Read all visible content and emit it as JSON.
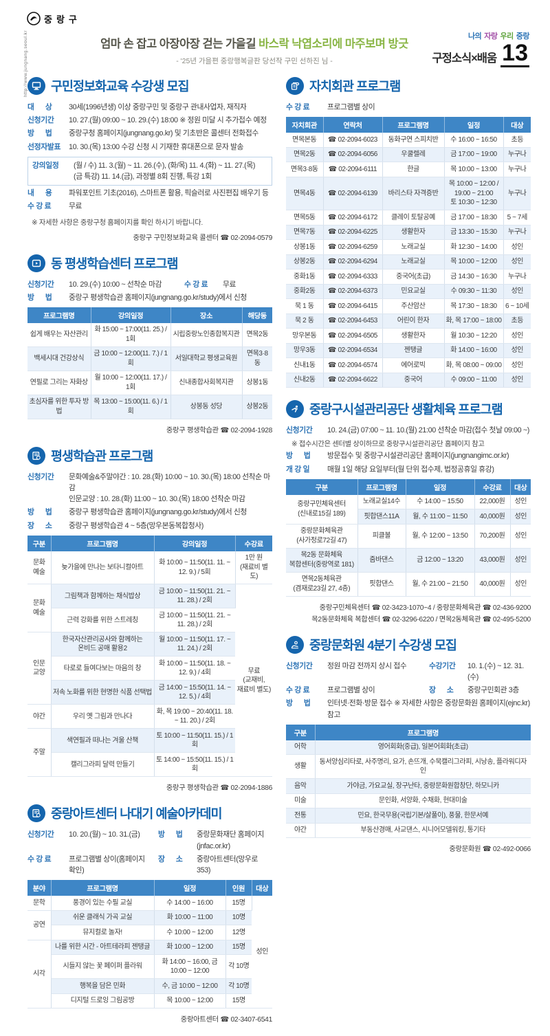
{
  "colors": {
    "accent_blue": "#1565ad",
    "label_blue": "#2e74b5",
    "table_header": "#3e86c6",
    "row_alt": "#e9f1fa",
    "highlight_green": "#8ab646",
    "brand_purple": "#a350a8",
    "brand_green": "#61a53f"
  },
  "header": {
    "logo_text": "중랑구",
    "logo_url_vertical": "http://www.jungnang.seoul.kr",
    "slogan_main": "엄마 손 잡고 아장아장 걷는 가을길 ",
    "slogan_highlight": "바스락 낙엽소리에 마주보며 방긋",
    "slogan_sub": "- '25년 가을편 중랑행복글판 당선작 구민 선하진 님 -",
    "brand_words": [
      {
        "text": "나의"
      },
      {
        "text": "자랑"
      },
      {
        "text": "우리"
      },
      {
        "text": "중랑"
      }
    ],
    "section_label": "구정소식×배움",
    "page_number": "13"
  },
  "sections": {
    "info_edu": {
      "title": "구민정보화교육 수강생 모집",
      "rows": [
        {
          "label": "대      상",
          "value": "30세(1996년생) 이상 중랑구민 및 중랑구 관내사업자, 재직자"
        },
        {
          "label": "신청기간",
          "value": "10. 27.(월) 09:00 ~ 10. 29.(수) 18:00  ※ 정원 미달 시 추가접수 예정"
        },
        {
          "label": "방      법",
          "value": "중랑구청 홈페이지(jungnang.go.kr) 및 기초반은 콜센터 전화접수"
        },
        {
          "label": "선정자발표",
          "value": "10. 30.(목) 13:00 수강 신청 시 기재한 휴대폰으로 문자 발송"
        }
      ],
      "box_row": {
        "label": "강의일정",
        "value": "(월 / 수) 11. 3.(월) ~ 11. 26.(수), (화/목) 11. 4.(화) ~ 11. 27.(목)\n(금 특강) 11. 14.(금), 과정별 8회 진행, 특강 1회"
      },
      "rows2": [
        {
          "label": "내      용",
          "value": "파워포인트 기초(2016), 스마트폰 활용, 픽슬러로 사진편집 배우기 등"
        },
        {
          "label": "수 강 료",
          "value": "무료"
        }
      ],
      "note": "※ 자세한 사항은 중랑구청 홈페이지를 확인 하시기 바랍니다.",
      "contact": "중랑구 구민정보화교육 콜센터 ☎ 02-2094-0579"
    },
    "dong_center": {
      "title": "동 평생학습센터 프로그램",
      "row1a": {
        "label": "신청기간",
        "value": "10. 29.(수) 10:00 ~ 선착순 마감"
      },
      "row1b": {
        "label": "수 강 료",
        "value": "무료"
      },
      "row2": {
        "label": "방      법",
        "value": "중랑구 평생학습관 홈페이지(jungnang.go.kr/study)에서 신청"
      },
      "table": {
        "headers": [
          "프로그램명",
          "강의일정",
          "장소",
          "해당동"
        ],
        "widths": [
          92,
          116,
          104,
          44
        ],
        "rows": [
          [
            "쉽게 배우는 자산관리",
            "화 15:00 ~ 17:00(11. 25.) / 1회",
            "시립중랑노인종합복지관",
            "면목2동"
          ],
          [
            "백세시대 건강상식",
            "금 10:00 ~ 12:00(11. 7.) / 1회",
            "서일대학교 평생교육원",
            "면목3·8동"
          ],
          [
            "연필로 그리는 자화상",
            "월 10:00 ~ 12:00(11. 17.) / 1회",
            "신내종합사회복지관",
            "상봉1동"
          ],
          [
            "초심자를 위한 투자 방법",
            "목 13:00 ~ 15:00(11. 6.) / 1회",
            "상봉동 성당",
            "상봉2동"
          ]
        ]
      },
      "contact": "중랑구 평생학습관 ☎ 02-2094-1928"
    },
    "learning_hall": {
      "title": "평생학습관 프로그램",
      "rows": [
        {
          "label": "신청기간",
          "value": "문화예술&주말야간 : 10. 28.(화) 10:00 ~ 10. 30.(목) 18:00 선착순 마감\n인문교양 : 10. 28.(화) 11:00 ~ 10. 30.(목) 18:00 선착순 마감"
        },
        {
          "label": "방      법",
          "value": "중랑구 평생학습관 홈페이지(jungnang.go.kr/study)에서 신청"
        },
        {
          "label": "장      소",
          "value": "중랑구 평생학습관 4 ~ 5층(망우본동복합청사)"
        }
      ],
      "table": {
        "headers": [
          "구분",
          "프로그램명",
          "강의일정",
          "수강료"
        ],
        "widths": [
          34,
          150,
          118,
          54
        ],
        "rows": [
          [
            {
              "t": "문화\n예술"
            },
            "늦가을에 만나는 보타니컬아트",
            "화 10:00 ~ 11:50(11. 11. ~ 12. 9.) / 5회",
            {
              "t": "1만 원\n(재료비 별도)"
            }
          ],
          [
            {
              "t": "문화\n예술",
              "rs": 2
            },
            "그림책과 함께하는 채식밥상",
            "금 10:00 ~ 11:50(11. 21. ~ 11. 28.) / 2회",
            {
              "t": "무료\n(교재비,\n재료비 별도)",
              "rs": 8
            }
          ],
          [
            "근력 강화를 위한 스트레칭",
            "금 10:00 ~ 11:50(11. 21. ~ 11. 28.) / 2회"
          ],
          [
            {
              "t": "인문\n교양",
              "rs": 3
            },
            "한국자산관리공사와 함께하는\n온비드 공매 활용2",
            "월 10:00 ~ 11:50(11. 17. ~ 11. 24.) / 2회"
          ],
          [
            "타로로 들여다보는 마음의 창",
            "화 10:00 ~ 11:50(11. 18. ~ 12. 9.) / 4회"
          ],
          [
            "저속 노화를 위한 현명한 식품 선택법",
            "금 14:00 ~ 15:50(11. 14. ~ 12. 5.) / 4회"
          ],
          [
            "야간",
            "우리 옛 그림과 만나다",
            "화, 목 19:00 ~ 20:40(11. 18. ~ 11. 20.) / 2회"
          ],
          [
            {
              "t": "주말",
              "rs": 2
            },
            "색연필과 떠나는 겨울 산책",
            "토 10:00 ~ 11:50(11. 15.) / 1회"
          ],
          [
            "캘리그라피 달력 만들기",
            "토 14:00 ~ 15:50(11. 15.) / 1회"
          ]
        ]
      },
      "contact": "중랑구 평생학습관 ☎ 02-2094-1886"
    },
    "art_center": {
      "title": "중랑아트센터 나대기 예술아카데미",
      "row1a": {
        "label": "신청기간",
        "value": "10. 20.(월) ~ 10. 31.(금)"
      },
      "row1b": {
        "label": "방      법",
        "value": "중랑문화재단 홈페이지(jnfac.or.kr)"
      },
      "row2a": {
        "label": "수 강 료",
        "value": "프로그램별 상이(홈페이지 확인)"
      },
      "row2b": {
        "label": "장      소",
        "value": "중랑아트센터(망우로 353)"
      },
      "table": {
        "headers": [
          "분야",
          "프로그램명",
          "일정",
          "인원",
          "대상"
        ],
        "widths": [
          34,
          150,
          104,
          38,
          30
        ],
        "rows": [
          [
            "문학",
            "풍경이 있는 수필 교실",
            "수 14:00 ~ 16:00",
            "15명",
            {
              "t": "성인",
              "rs": 7
            }
          ],
          [
            {
              "t": "공연",
              "rs": 2
            },
            "쉬운 클래식 가곡 교실",
            "화 10:00 ~ 11:00",
            "10명"
          ],
          [
            "뮤지컬로 놀자!",
            "수 10:00 ~ 12:00",
            "12명"
          ],
          [
            {
              "t": "시각",
              "rs": 4
            },
            "나를 위한 시간 - 아트테라피 젠탱글",
            "화 10:00 ~ 12:00",
            "15명"
          ],
          [
            "시들지 않는 꽃 페이퍼 플라워",
            "화 14:00 ~ 16:00, 금 10:00 ~ 12:00",
            "각 10명"
          ],
          [
            "행복을 담은 민화",
            "수, 금 10:00 ~ 12:00",
            "각 10명"
          ],
          [
            "디지털 드로잉 그림공방",
            "목 10:00 ~ 12:00",
            "15명"
          ]
        ]
      },
      "contact": "중랑아트센터 ☎ 02-3407-6541"
    },
    "jachi": {
      "title": "자치회관 프로그램",
      "fee": {
        "label": "수 강 료",
        "value": "프로그램별 상이"
      },
      "table": {
        "headers": [
          "자치회관",
          "연락처",
          "프로그램명",
          "일정",
          "대상"
        ],
        "widths": [
          54,
          86,
          90,
          86,
          40
        ],
        "rows": [
          [
            "면목본동",
            "☎ 02-2094-6023",
            "동화구연 스피치반",
            "수 16:00 ~ 16:50",
            "초등"
          ],
          [
            "면목2동",
            "☎ 02-2094-6056",
            "우쿨렐레",
            "금 17:00 ~ 19:00",
            "누구나"
          ],
          [
            "면목3·8동",
            "☎ 02-2094-6111",
            "한글",
            "목 10:00 ~ 13:00",
            "누구나"
          ],
          [
            "면목4동",
            "☎ 02-2094-6139",
            "바리스타 자격증반",
            "목 10:00 ~ 12:00 /\n19:00 ~ 21:00\n토 10:30 ~ 12:30",
            "누구나"
          ],
          [
            "면목5동",
            "☎ 02-2094-6172",
            "클레이 토탈공예",
            "금 17:00 ~ 18:30",
            "5 ~ 7세"
          ],
          [
            "면목7동",
            "☎ 02-2094-6225",
            "생활한자",
            "금 13:30 ~ 15:30",
            "누구나"
          ],
          [
            "상봉1동",
            "☎ 02-2094-6259",
            "노래교실",
            "화 12:30 ~ 14:00",
            "성인"
          ],
          [
            "상봉2동",
            "☎ 02-2094-6294",
            "노래교실",
            "목 10:00 ~ 12:00",
            "성인"
          ],
          [
            "중화1동",
            "☎ 02-2094-6333",
            "중국어(초급)",
            "금 14:30 ~ 16:30",
            "누구나"
          ],
          [
            "중화2동",
            "☎ 02-2094-6373",
            "민요교실",
            "수 09:30 ~ 11:30",
            "성인"
          ],
          [
            "묵 1 동",
            "☎ 02-2094-6415",
            "주산암산",
            "목 17:30 ~ 18:30",
            "6 ~ 10세"
          ],
          [
            "묵 2 동",
            "☎ 02-2094-6453",
            "어린이 한자",
            "화, 목 17:00 ~ 18:00",
            "초등"
          ],
          [
            "망우본동",
            "☎ 02-2094-6505",
            "생활한자",
            "월 10:30 ~ 12:20",
            "성인"
          ],
          [
            "망우3동",
            "☎ 02-2094-6534",
            "젠탱글",
            "화 14:00 ~ 16:00",
            "성인"
          ],
          [
            "신내1동",
            "☎ 02-2094-6574",
            "에어로빅",
            "화, 목 08:00 ~ 09:00",
            "성인"
          ],
          [
            "신내2동",
            "☎ 02-2094-6622",
            "중국어",
            "수 09:00 ~ 11:00",
            "성인"
          ]
        ]
      }
    },
    "sports": {
      "title": "중랑구시설관리공단 생활체육 프로그램",
      "row1": {
        "label": "신청기간",
        "value": "10. 24.(금) 07:00 ~ 11. 10.(월) 21:00 선착순 마감(접수 첫날 09:00 ~)"
      },
      "note": "※ 접수시간은 센터별 상이하므로 중랑구시설관리공단 홈페이지 참고",
      "row2": {
        "label": "방      법",
        "value": "방문접수 및 중랑구시설관리공단 홈페이지(jungnangimc.or.kr)"
      },
      "row3": {
        "label": "개 강 일",
        "value": "매월 1일 해당 요일부터(월 단위 접수제, 법정공휴일 휴강)"
      },
      "table": {
        "headers": [
          "구분",
          "프로그램명",
          "일정",
          "수강료",
          "대상"
        ],
        "widths": [
          104,
          70,
          100,
          52,
          30
        ],
        "rows": [
          [
            {
              "t": "중랑구민체육센터\n(신내로15길 189)",
              "rs": 2
            },
            "노래교실14수",
            "수 14:00 ~ 15:50",
            "22,000원",
            "성인"
          ],
          [
            "핏합댄스11A",
            "월, 수 11:00 ~ 11:50",
            "40,000원",
            "성인"
          ],
          [
            {
              "t": "중랑문화체육관\n(사가정로72길 47)"
            },
            "피클볼",
            "월, 수 12:00 ~ 13:50",
            "70,200원",
            "성인"
          ],
          [
            {
              "t": "목2동 문화체육\n복합센터(중랑역로 181)"
            },
            "줌바댄스",
            "금 12:00 ~ 13:20",
            "43,000원",
            "성인"
          ],
          [
            {
              "t": "면목2동체육관\n(겸재로23길 27, 4층)"
            },
            "핏합댄스",
            "월, 수 21:00 ~ 21:50",
            "40,000원",
            "성인"
          ]
        ]
      },
      "contacts": [
        "중랑구민체육센터 ☎ 02-3423-1070~4 / 중랑문화체육관 ☎ 02-436-9200",
        "목2동문화체육 복합센터 ☎ 02-3296-6220 / 면목2동체육관 ☎ 02-495-5200"
      ]
    },
    "culture": {
      "title": "중랑문화원 4분기 수강생 모집",
      "row1a": {
        "label": "신청기간",
        "value": "정원 마감 전까지 상시 접수"
      },
      "row1b": {
        "label": "수강기간",
        "value": "10. 1.(수) ~ 12. 31.(수)"
      },
      "row2a": {
        "label": "수 강 료",
        "value": "프로그램별 상이"
      },
      "row2b": {
        "label": "장      소",
        "value": "중랑구민회관 3층"
      },
      "row3": {
        "label": "방      법",
        "value": "인터넷·전화·방문 접수 ※ 자세한 사항은 중랑문화원 홈페이지(ejnc.kr)참고"
      },
      "table": {
        "headers": [
          "구분",
          "프로그램명"
        ],
        "widths": [
          42,
          314
        ],
        "rows": [
          [
            "어학",
            "영어회화(중급), 일본어회화(초급)"
          ],
          [
            "생활",
            "동서양심리타로, 사주명리, 요가, 손뜨개, 수묵캘리그라피, 시낭송, 플라워디자인"
          ],
          [
            "음악",
            "가야금, 가요교실, 장구난타, 중랑문화원합창단, 하모니카"
          ],
          [
            "미술",
            "문인화, 서양화, 수채화, 현대미술"
          ],
          [
            "전통",
            "민요, 한국무용(국립기본/살풀이), 풍물, 한문서예"
          ],
          [
            "야간",
            "부동산경매, 사교댄스, 시니어모델워킹, 통기타"
          ]
        ]
      },
      "contact": "중랑문화원 ☎ 02-492-0066"
    }
  }
}
